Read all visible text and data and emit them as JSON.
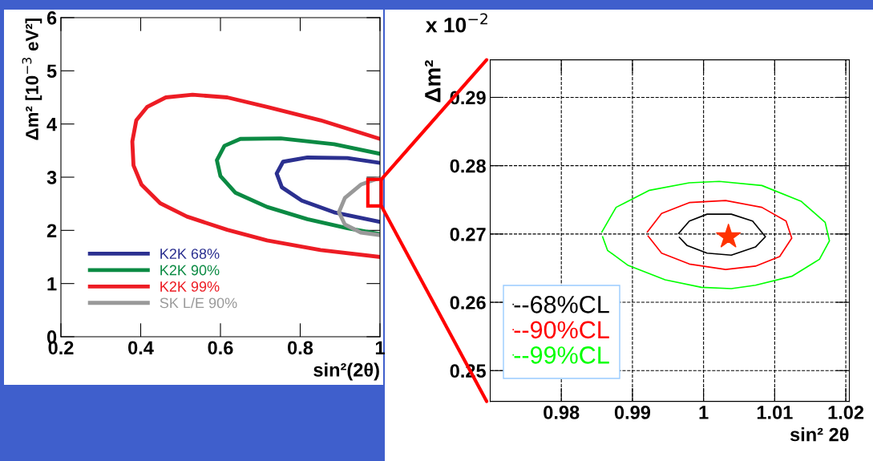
{
  "chart_data": [
    {
      "type": "line",
      "xlabel": "sin²(2θ)",
      "ylabel": "Δm² [10$^{−3}$ eV²]",
      "xlim": [
        0.2,
        1.0
      ],
      "ylim": [
        0,
        6
      ],
      "xticks": [
        0.2,
        0.4,
        0.6,
        0.8,
        {
          "value": 1.0,
          "label": "1"
        }
      ],
      "yticks": [
        0,
        1,
        2,
        3,
        4,
        5,
        6
      ],
      "grid": false,
      "legend": "bottom left",
      "series": [
        {
          "name": "K2K 68%",
          "color": "#2b3090",
          "x": [
            1.0,
            0.918,
            0.818,
            0.757,
            0.741,
            0.754,
            0.804,
            0.885,
            1.0
          ],
          "values": [
            3.27,
            3.36,
            3.37,
            3.29,
            3.07,
            2.81,
            2.56,
            2.34,
            2.16
          ]
        },
        {
          "name": "K2K 90%",
          "color": "#0b8a43",
          "x": [
            1.0,
            0.885,
            0.751,
            0.65,
            0.61,
            0.591,
            0.6,
            0.637,
            0.717,
            0.818,
            0.918,
            1.0
          ],
          "values": [
            3.44,
            3.62,
            3.73,
            3.72,
            3.59,
            3.32,
            3.02,
            2.71,
            2.44,
            2.21,
            2.04,
            1.93
          ]
        },
        {
          "name": "K2K 99%",
          "color": "#ed1c24",
          "x": [
            1.0,
            0.851,
            0.717,
            0.617,
            0.53,
            0.463,
            0.416,
            0.389,
            0.379,
            0.382,
            0.402,
            0.449,
            0.516,
            0.617,
            0.717,
            0.851,
            1.0
          ],
          "values": [
            3.72,
            4.07,
            4.32,
            4.5,
            4.55,
            4.5,
            4.32,
            4.07,
            3.67,
            3.22,
            2.86,
            2.51,
            2.26,
            2.01,
            1.81,
            1.63,
            1.5
          ]
        },
        {
          "name": "SK L/E 90%",
          "color": "#999999",
          "x": [
            1.0,
            0.952,
            0.912,
            0.897,
            0.912,
            0.952,
            1.0
          ],
          "values": [
            2.99,
            2.86,
            2.61,
            2.34,
            2.11,
            1.96,
            1.91
          ]
        }
      ]
    },
    {
      "type": "line",
      "xlabel": "sin² 2θ",
      "ylabel": "Δm²",
      "xlim": [
        0.97,
        1.0205
      ],
      "ylim": [
        0.2455,
        0.2955
      ],
      "xticks": [
        0.98,
        0.99,
        1,
        1.01,
        1.02
      ],
      "yticks": [
        0.25,
        0.26,
        0.27,
        0.28,
        0.29
      ],
      "grid": true,
      "legend": "bottom left",
      "annotations": [
        "x 10$^{−2}$"
      ],
      "series": [
        {
          "name": "--68%CL",
          "color": "#000000",
          "x": [
            0.9965,
            0.998,
            1.0005,
            1.0039,
            1.0069,
            1.0087,
            1.0073,
            1.0039,
            1.0005,
            0.9977,
            0.9966
          ],
          "values": [
            0.2701,
            0.2719,
            0.2729,
            0.2729,
            0.2719,
            0.2696,
            0.2681,
            0.2669,
            0.2672,
            0.2683,
            0.2695
          ]
        },
        {
          "name": "--90%CL",
          "color": "#ff0000",
          "x": [
            0.9921,
            0.9941,
            0.998,
            1.0031,
            1.0082,
            1.0116,
            1.0124,
            1.0107,
            1.0073,
            1.0031,
            0.998,
            0.9941,
            0.9922
          ],
          "values": [
            0.2703,
            0.273,
            0.2746,
            0.2749,
            0.2739,
            0.2719,
            0.2694,
            0.2667,
            0.2653,
            0.2648,
            0.2656,
            0.2672,
            0.2697
          ]
        },
        {
          "name": "--99%CL",
          "color": "#00ff00",
          "x": [
            0.9857,
            0.9877,
            0.9924,
            0.998,
            1.0022,
            1.0082,
            1.0137,
            1.0171,
            1.0177,
            1.0163,
            1.0124,
            1.0073,
            1.0039,
            0.9997,
            0.9946,
            0.9894,
            0.9865,
            0.9858
          ],
          "values": [
            0.2703,
            0.2739,
            0.2764,
            0.2775,
            0.2777,
            0.2771,
            0.2748,
            0.2717,
            0.269,
            0.2663,
            0.2638,
            0.2625,
            0.262,
            0.2622,
            0.2633,
            0.2654,
            0.2676,
            0.2696
          ]
        },
        {
          "type": "scatter",
          "marker": "star",
          "color": "#ff3300",
          "x": [
            1.0035
          ],
          "values": [
            0.2696
          ]
        }
      ]
    }
  ]
}
